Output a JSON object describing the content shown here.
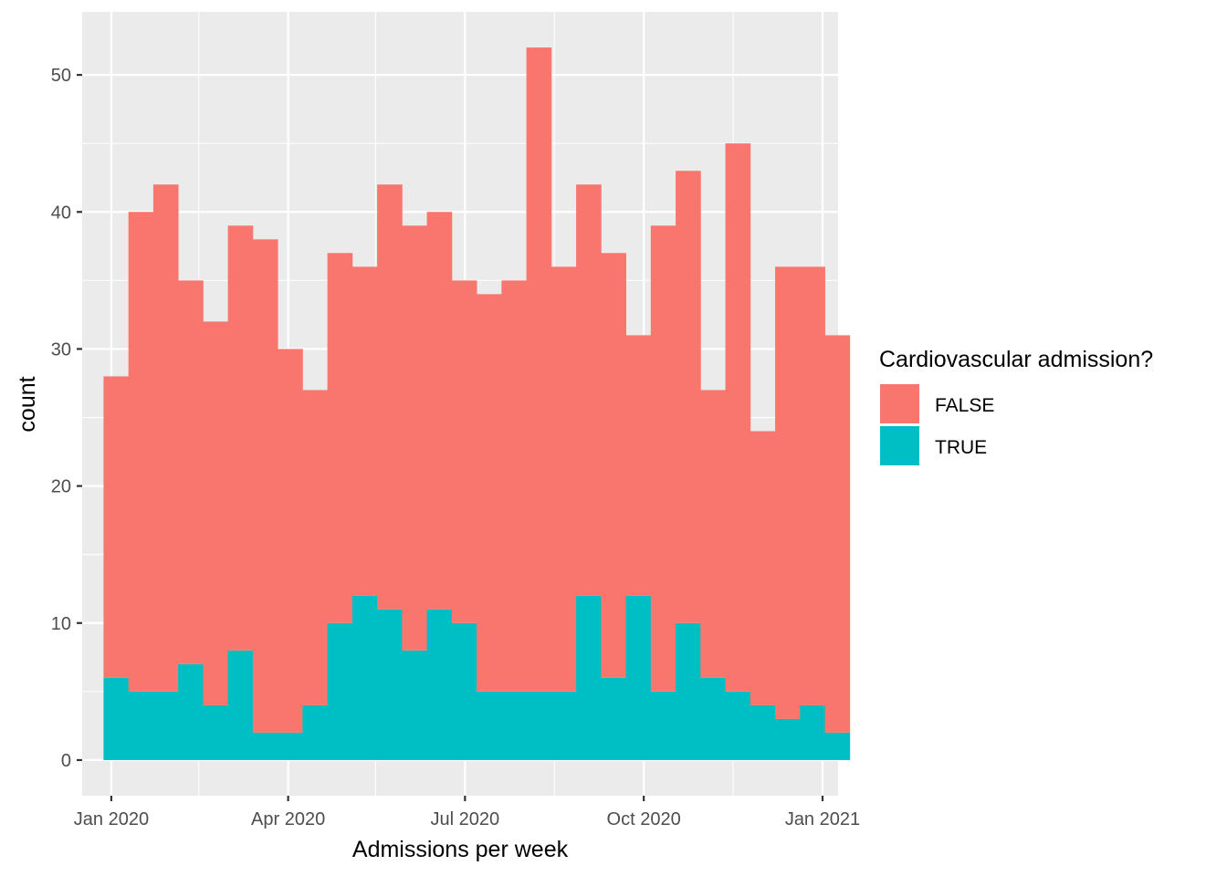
{
  "chart_data": {
    "type": "bar",
    "subtype": "stacked-histogram",
    "xlabel": "Admissions per week",
    "ylabel": "count",
    "ylim": [
      -2.6,
      54.6
    ],
    "yticks": [
      0,
      10,
      20,
      30,
      40,
      50
    ],
    "x_axis": {
      "type": "date",
      "range": [
        "2019-12-17",
        "2021-01-09"
      ],
      "ticks": [
        {
          "date": "2020-01-01",
          "label": "Jan 2020"
        },
        {
          "date": "2020-04-01",
          "label": "Apr 2020"
        },
        {
          "date": "2020-07-01",
          "label": "Jul 2020"
        },
        {
          "date": "2020-10-01",
          "label": "Oct 2020"
        },
        {
          "date": "2021-01-01",
          "label": "Jan 2021"
        }
      ],
      "minor_ticks": [
        "2020-02-15",
        "2020-05-16",
        "2020-08-16",
        "2020-11-16"
      ]
    },
    "bins": {
      "start": "2019-12-28",
      "width_days": 12.8,
      "count": 30
    },
    "series": [
      {
        "name": "FALSE",
        "color": "#F8766D",
        "values": [
          22,
          35,
          37,
          28,
          28,
          31,
          36,
          28,
          23,
          27,
          24,
          31,
          31,
          29,
          25,
          29,
          30,
          47,
          31,
          30,
          31,
          19,
          34,
          33,
          21,
          40,
          20,
          33,
          32,
          29
        ]
      },
      {
        "name": "TRUE",
        "color": "#00BFC4",
        "values": [
          6,
          5,
          5,
          7,
          4,
          8,
          2,
          2,
          4,
          10,
          12,
          11,
          8,
          11,
          10,
          5,
          5,
          5,
          5,
          12,
          6,
          12,
          5,
          10,
          6,
          5,
          4,
          3,
          4,
          2
        ]
      }
    ],
    "totals": [
      28,
      40,
      42,
      35,
      32,
      39,
      38,
      30,
      27,
      37,
      36,
      42,
      39,
      40,
      35,
      34,
      35,
      52,
      36,
      42,
      37,
      31,
      39,
      43,
      27,
      45,
      24,
      36,
      36,
      31
    ],
    "grid": true,
    "legend": {
      "title": "Cardiovascular admission?",
      "position": "right",
      "entries": [
        {
          "label": "FALSE",
          "color": "#F8766D"
        },
        {
          "label": "TRUE",
          "color": "#00BFC4"
        }
      ]
    }
  }
}
